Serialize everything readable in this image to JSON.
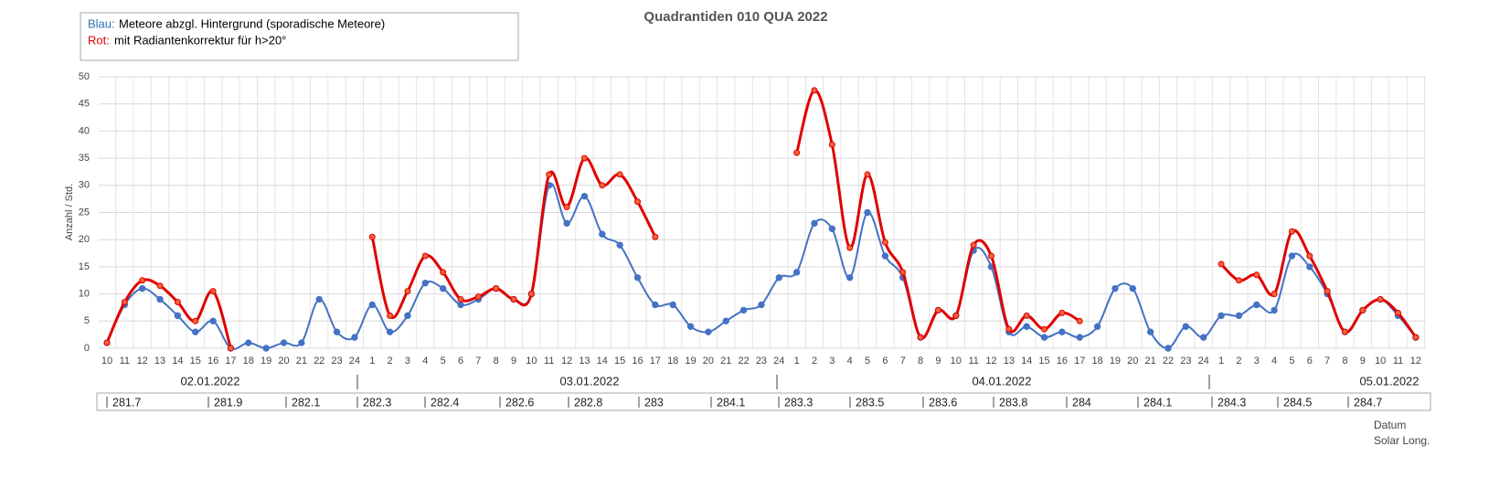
{
  "chart_data": {
    "type": "line",
    "title": "Quadrantiden 010 QUA 2022",
    "y_label": "Anzahl / Std.",
    "categories": [
      10,
      11,
      12,
      13,
      14,
      15,
      16,
      17,
      18,
      19,
      20,
      21,
      22,
      23,
      24,
      1,
      2,
      3,
      4,
      5,
      6,
      7,
      8,
      9,
      10,
      11,
      12,
      13,
      14,
      15,
      16,
      17,
      18,
      19,
      20,
      21,
      22,
      23,
      24,
      1,
      2,
      3,
      4,
      5,
      6,
      7,
      8,
      9,
      10,
      11,
      12,
      13,
      14,
      15,
      16,
      17,
      18,
      19,
      20,
      21,
      22,
      23,
      24,
      1,
      2,
      3,
      4,
      5,
      6,
      7,
      8,
      9,
      10,
      11,
      12
    ],
    "dates": [
      "02.01.2022",
      "03.01.2022",
      "04.01.2022",
      "05.01.2022"
    ],
    "solar_long": [
      "281.7",
      "281.9",
      "282.1",
      "282.3",
      "282.4",
      "282.6",
      "282.8",
      "283",
      "284.1",
      "283.3",
      "283.5",
      "283.6",
      "283.8",
      "284",
      "284.1",
      "284.3",
      "284.5",
      "284.7"
    ],
    "x_label_date": "Datum",
    "x_label_solar": "Solar Long.",
    "series": [
      {
        "name": "Meteore abzgl. Hintergrund (sporadische Meteore)",
        "legend_prefix": "Blau:",
        "color": "#4472c4",
        "values": [
          1,
          8,
          11,
          9,
          6,
          3,
          5,
          0,
          1,
          0,
          1,
          1,
          9,
          3,
          2,
          8,
          3,
          6,
          12,
          11,
          8,
          9,
          11,
          9,
          10,
          30,
          23,
          28,
          21,
          19,
          13,
          8,
          8,
          4,
          3,
          5,
          7,
          8,
          13,
          14,
          23,
          22,
          13,
          25,
          17,
          13,
          2,
          7,
          6,
          18,
          15,
          3,
          4,
          2,
          3,
          2,
          4,
          11,
          11,
          3,
          0,
          4,
          2,
          6,
          6,
          8,
          7,
          17,
          15,
          10,
          3,
          7,
          9,
          6,
          2
        ]
      },
      {
        "name": "mit Radiantenkorrektur für h>20°",
        "legend_prefix": "Rot:",
        "color": "#e00000",
        "values": [
          1,
          8.5,
          12.5,
          11.5,
          8.5,
          5,
          10.5,
          0,
          null,
          null,
          null,
          null,
          null,
          null,
          null,
          20.5,
          6,
          10.5,
          17,
          14,
          9,
          9.5,
          11,
          9,
          10,
          32,
          26,
          35,
          30,
          32,
          27,
          20.5,
          null,
          null,
          null,
          null,
          null,
          null,
          null,
          36,
          47.5,
          37.5,
          18.5,
          32,
          19.5,
          14,
          2,
          7,
          6,
          19,
          17,
          3.5,
          6,
          3.5,
          6.5,
          5,
          null,
          null,
          null,
          null,
          null,
          null,
          null,
          15.5,
          12.5,
          13.5,
          10,
          21.5,
          17,
          10.5,
          3,
          7,
          9,
          6.5,
          2
        ]
      }
    ],
    "ylim": [
      0,
      50
    ],
    "yticks": [
      0,
      5,
      10,
      15,
      20,
      25,
      30,
      35,
      40,
      45,
      50
    ],
    "grid": true
  }
}
